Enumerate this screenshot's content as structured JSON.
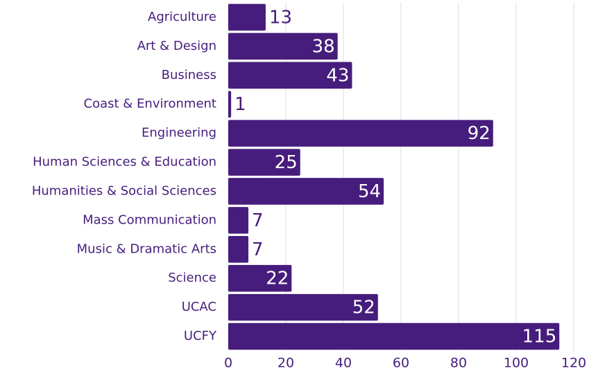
{
  "chart_data": {
    "type": "bar",
    "orientation": "horizontal",
    "categories": [
      "Agriculture",
      "Art & Design",
      "Business",
      "Coast & Environment",
      "Engineering",
      "Human Sciences & Education",
      "Humanities & Social Sciences",
      "Mass Communication",
      "Music & Dramatic Arts",
      "Science",
      "UCAC",
      "UCFY"
    ],
    "values": [
      13,
      38,
      43,
      1,
      92,
      25,
      54,
      7,
      7,
      22,
      52,
      115
    ],
    "color": "#461d7c",
    "xlim": [
      0,
      120
    ],
    "xticks": [
      0,
      20,
      40,
      60,
      80,
      100,
      120
    ],
    "grid": true
  }
}
